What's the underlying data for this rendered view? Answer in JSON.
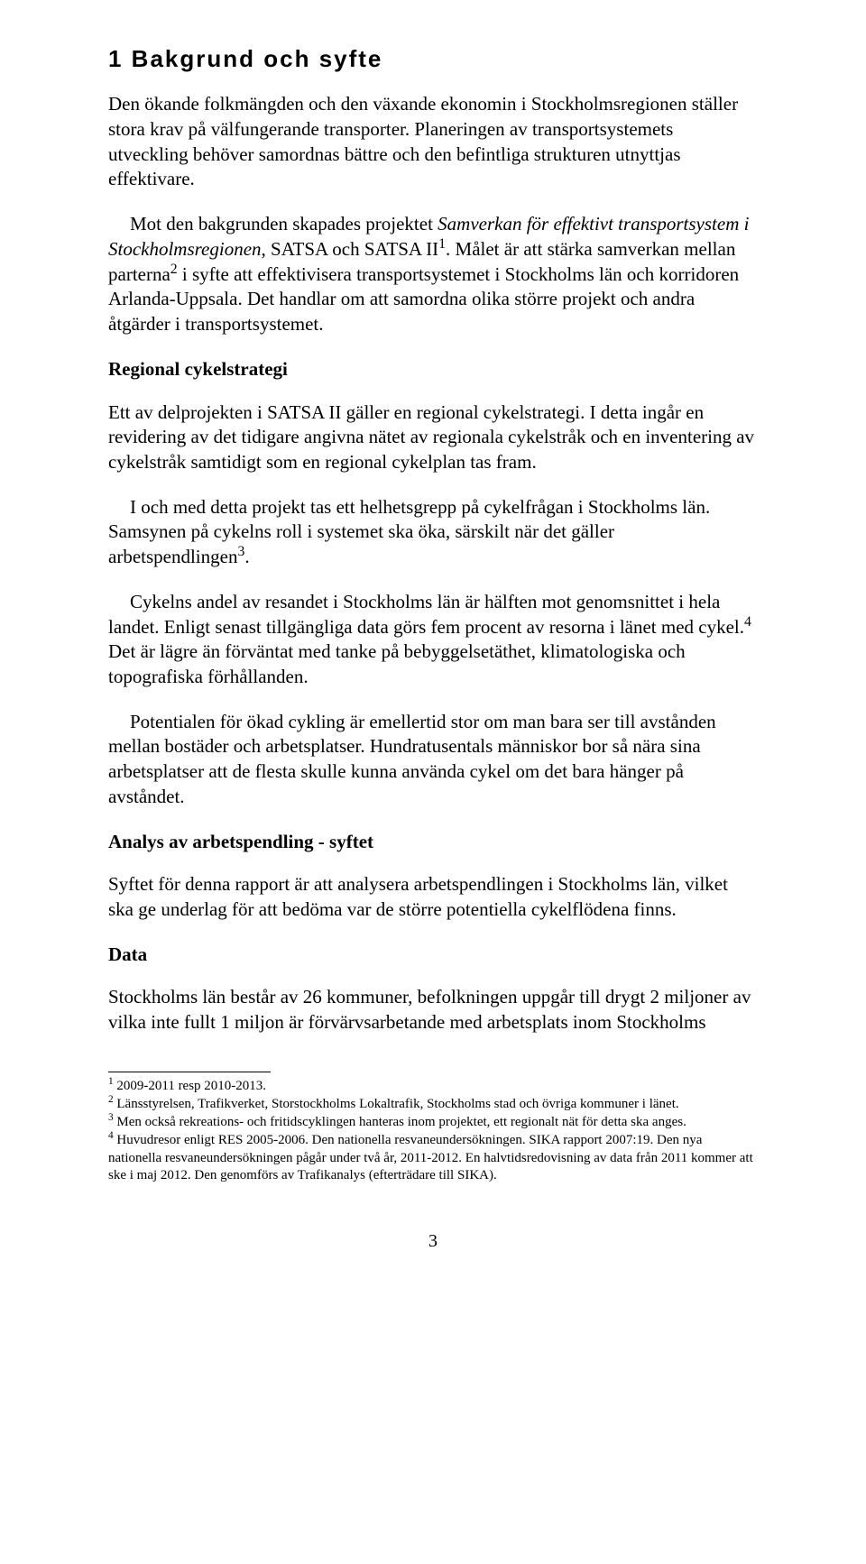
{
  "section": {
    "title": "1 Bakgrund och syfte"
  },
  "para1a": "Den ökande folkmängden och den växande ekonomin i Stockholmsregionen ställer stora krav på välfungerande transporter. Planeringen av transportsystemets utveckling behöver samordnas bättre och den befintliga strukturen utnyttjas effektivare.",
  "para2_pre": "Mot den bakgrunden skapades projektet ",
  "para2_it": "Samverkan för effektivt transportsystem i Stockholmsregionen",
  "para2_mid1": ", SATSA och SATSA II",
  "para2_mid2": ". Målet är att stärka samverkan mellan parterna",
  "para2_post": " i syfte att effektivisera transportsystemet i Stockholms län och korridoren Arlanda-Uppsala. Det handlar om att samordna olika större projekt och andra åtgärder i transportsystemet.",
  "sub1": "Regional cykelstrategi",
  "para3": "Ett av delprojekten i SATSA II gäller en regional cykelstrategi. I detta ingår en revidering av det tidigare angivna nätet av regionala cykelstråk och en inventering av cykelstråk samtidigt som en regional cykelplan tas fram.",
  "para4a": "I och med detta projekt tas ett helhetsgrepp på cykelfrågan i Stockholms län. Samsynen på cykelns roll i systemet ska öka, särskilt när det gäller arbetspendlingen",
  "para4b": ".",
  "para5a": "Cykelns andel av resandet i Stockholms län är hälften mot genomsnittet i hela landet. Enligt senast tillgängliga data görs fem procent av resorna i länet med cykel.",
  "para5b": " Det är lägre än förväntat med tanke på bebyggelsetäthet, klimatologiska och topografiska förhållanden.",
  "para6": "Potentialen för ökad cykling är emellertid stor om man bara ser till avstånden mellan bostäder och arbetsplatser. Hundratusentals människor bor så nära sina arbetsplatser att de flesta skulle kunna använda cykel om det bara hänger på avståndet.",
  "sub2": "Analys av arbetspendling - syftet",
  "para7": "Syftet för denna rapport är att analysera arbetspendlingen i Stockholms län, vilket ska ge underlag för att bedöma var de större potentiella cykelflödena finns.",
  "sub3": "Data",
  "para8": "Stockholms län består av 26 kommuner, befolkningen uppgår till drygt 2 miljoner av vilka inte fullt 1 miljon är förvärvsarbetande med arbetsplats inom Stockholms",
  "footnotes": {
    "f1": " 2009-2011 resp 2010-2013.",
    "f2": " Länsstyrelsen, Trafikverket, Storstockholms Lokaltrafik, Stockholms stad och övriga kommuner i länet.",
    "f3": " Men också rekreations- och fritidscyklingen hanteras inom projektet, ett regionalt nät för detta ska anges.",
    "f4": " Huvudresor enligt RES 2005-2006. Den nationella resvaneundersökningen. SIKA rapport 2007:19. Den nya nationella resvaneundersökningen pågår under två år, 2011-2012. En halvtidsredovisning av data från 2011 kommer att ske i maj 2012. Den genomförs av Trafikanalys (efterträdare till SIKA)."
  },
  "fnrefs": {
    "n1": "1",
    "n2": "2",
    "n3": "3",
    "n4": "4"
  },
  "pageNumber": "3"
}
